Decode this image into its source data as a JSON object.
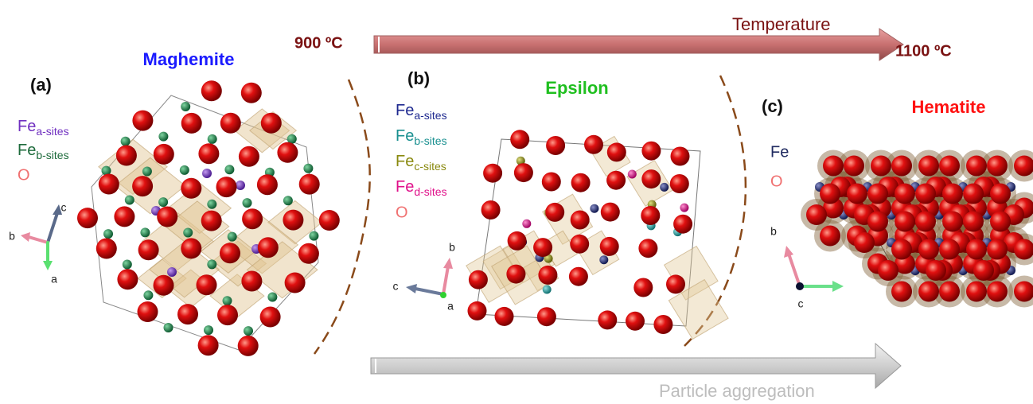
{
  "header": {
    "temp_start": "900 ºC",
    "temp_label": "Temperature",
    "temp_end": "1100 ºC",
    "aggregation_label": "Particle aggregation"
  },
  "panels": [
    {
      "label": "(a)",
      "name": "Maghemite",
      "legend": [
        {
          "symbol": "Fe",
          "sub": "a-sites"
        },
        {
          "symbol": "Fe",
          "sub": "b-sites"
        },
        {
          "symbol": "O"
        }
      ],
      "axes": [
        "c",
        "b",
        "a"
      ]
    },
    {
      "label": "(b)",
      "name": "Epsilon",
      "legend": [
        {
          "symbol": "Fe",
          "sub": "a-sites"
        },
        {
          "symbol": "Fe",
          "sub": "b-sites"
        },
        {
          "symbol": "Fe",
          "sub": "c-sites"
        },
        {
          "symbol": "Fe",
          "sub": "d-sites"
        },
        {
          "symbol": "O"
        }
      ],
      "axes": [
        "b",
        "c",
        "a"
      ]
    },
    {
      "label": "(c)",
      "name": "Hematite",
      "legend": [
        {
          "symbol": "Fe"
        },
        {
          "symbol": "O"
        }
      ],
      "axes": [
        "b",
        "c"
      ]
    }
  ]
}
